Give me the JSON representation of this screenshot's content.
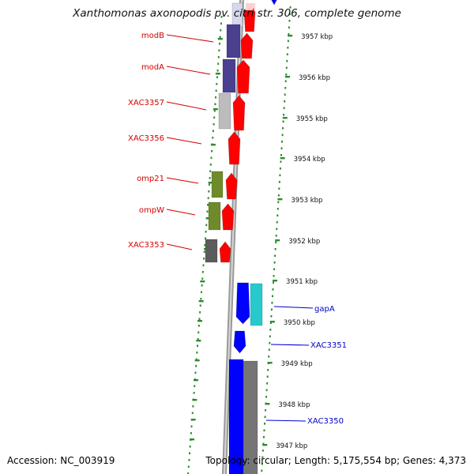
{
  "title": "Xanthomonas axonopodis pv. citri str. 306, complete genome",
  "footer": {
    "accession": "Accession: NC_003919",
    "summary": "Topology: circular; Length: 5,175,554 bp; Genes: 4,373"
  },
  "colors": {
    "plus_strand": "#ff0000",
    "minus_strand": "#0000ff",
    "label_upper": "#d40000",
    "label_lower": "#0000cc",
    "backbone": "#888888",
    "tick": "#2e8b2e"
  },
  "ruler": [
    {
      "kbp": 3957,
      "label": "3957 kbp"
    },
    {
      "kbp": 3956,
      "label": "3956 kbp"
    },
    {
      "kbp": 3955,
      "label": "3955 kbp"
    },
    {
      "kbp": 3954,
      "label": "3954 kbp"
    },
    {
      "kbp": 3953,
      "label": "3953 kbp"
    },
    {
      "kbp": 3952,
      "label": "3952 kbp"
    },
    {
      "kbp": 3951,
      "label": "3951 kbp"
    },
    {
      "kbp": 3950,
      "label": "3950 kbp"
    },
    {
      "kbp": 3949,
      "label": "3949 kbp"
    },
    {
      "kbp": 3948,
      "label": "3948 kbp"
    },
    {
      "kbp": 3947,
      "label": "3947 kbp"
    }
  ],
  "genes": [
    {
      "name": "modB",
      "side": "left"
    },
    {
      "name": "modA",
      "side": "left"
    },
    {
      "name": "XAC3357",
      "side": "left"
    },
    {
      "name": "XAC3356",
      "side": "left"
    },
    {
      "name": "omp21",
      "side": "left"
    },
    {
      "name": "ompW",
      "side": "left"
    },
    {
      "name": "XAC3353",
      "side": "left"
    },
    {
      "name": "gapA",
      "side": "right"
    },
    {
      "name": "XAC3351",
      "side": "right"
    },
    {
      "name": "XAC3350",
      "side": "right"
    }
  ]
}
